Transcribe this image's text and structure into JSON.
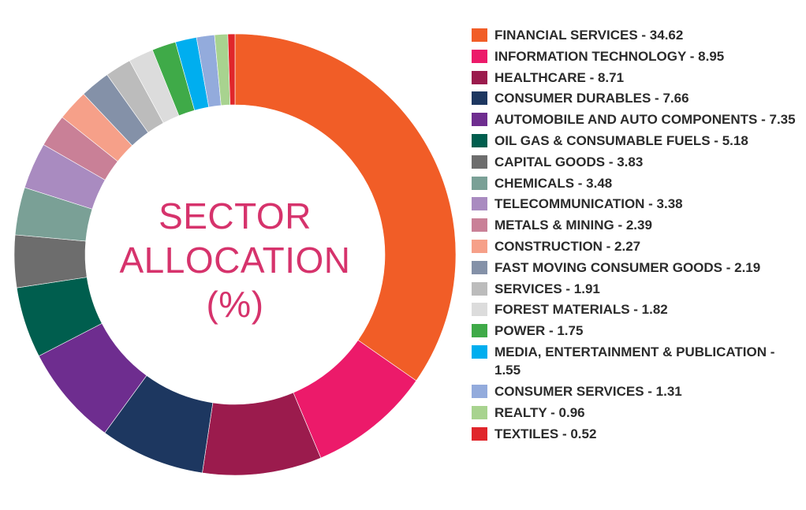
{
  "center": {
    "line1": "SECTOR",
    "line2": "ALLOCATION",
    "line3": "(%)"
  },
  "chart_data": {
    "type": "pie",
    "donut": true,
    "legend_position": "right",
    "labels": [
      "FINANCIAL SERVICES",
      "INFORMATION TECHNOLOGY",
      "HEALTHCARE",
      "CONSUMER DURABLES",
      "AUTOMOBILE AND AUTO COMPONENTS",
      "OIL GAS & CONSUMABLE FUELS",
      "CAPITAL GOODS",
      "CHEMICALS",
      "TELECOMMUNICATION",
      "METALS & MINING",
      "CONSTRUCTION",
      "FAST MOVING CONSUMER GOODS",
      "SERVICES",
      "FOREST MATERIALS",
      "POWER",
      "MEDIA, ENTERTAINMENT & PUBLICATION",
      "CONSUMER SERVICES",
      "REALTY",
      "TEXTILES"
    ],
    "values": [
      34.62,
      8.95,
      8.71,
      7.66,
      7.35,
      5.18,
      3.83,
      3.48,
      3.38,
      2.39,
      2.27,
      2.19,
      1.91,
      1.82,
      1.75,
      1.55,
      1.31,
      0.96,
      0.52
    ],
    "legend_entries": [
      "FINANCIAL SERVICES - 34.62",
      "INFORMATION TECHNOLOGY - 8.95",
      "HEALTHCARE - 8.71",
      "CONSUMER DURABLES - 7.66",
      "AUTOMOBILE AND AUTO COMPONENTS - 7.35",
      "OIL GAS & CONSUMABLE FUELS - 5.18",
      "CAPITAL GOODS - 3.83",
      "CHEMICALS - 3.48",
      "TELECOMMUNICATION - 3.38",
      "METALS & MINING - 2.39",
      "CONSTRUCTION - 2.27",
      "FAST MOVING CONSUMER GOODS - 2.19",
      "SERVICES - 1.91",
      "FOREST MATERIALS - 1.82",
      "POWER - 1.75",
      "MEDIA, ENTERTAINMENT & PUBLICATION - 1.55",
      "CONSUMER SERVICES - 1.31",
      "REALTY - 0.96",
      "TEXTILES - 0.52"
    ],
    "colors": [
      "#f15d27",
      "#ec1a6a",
      "#9b1b4d",
      "#1d3760",
      "#6e2d8f",
      "#005e4e",
      "#6d6d6d",
      "#7aa096",
      "#a98bc0",
      "#c98097",
      "#f6a089",
      "#8491a8",
      "#bcbcbc",
      "#dcdcdc",
      "#3faa48",
      "#00aeef",
      "#93abdc",
      "#a8d38f",
      "#e0262b"
    ]
  }
}
